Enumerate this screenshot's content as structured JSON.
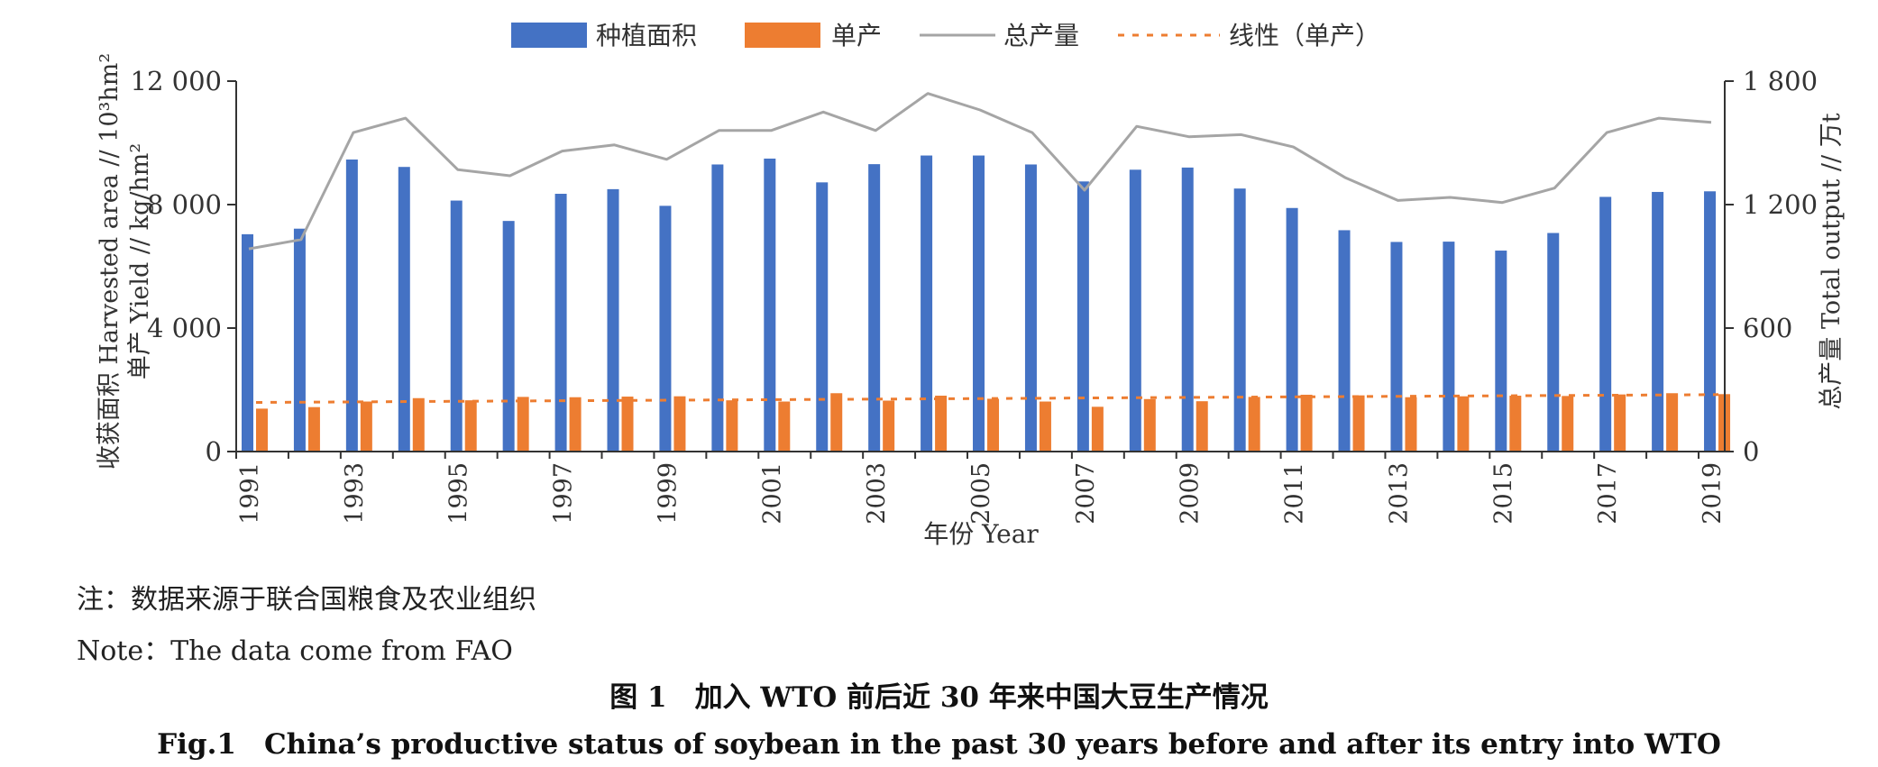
{
  "chart_data": {
    "type": "bar",
    "x": [
      "1991",
      "1992",
      "1993",
      "1994",
      "1995",
      "1996",
      "1997",
      "1998",
      "1999",
      "2000",
      "2001",
      "2002",
      "2003",
      "2004",
      "2005",
      "2006",
      "2007",
      "2008",
      "2009",
      "2010",
      "2011",
      "2012",
      "2013",
      "2014",
      "2015",
      "2016",
      "2017",
      "2018",
      "2019"
    ],
    "x_tick_labels": [
      "1991",
      "1993",
      "1995",
      "1997",
      "1999",
      "2001",
      "2003",
      "2005",
      "2007",
      "2009",
      "2011",
      "2013",
      "2015",
      "2017",
      "2019"
    ],
    "series": [
      {
        "name": "种植面积",
        "type": "bar",
        "axis": "left",
        "color": "#4472C4",
        "values": [
          7040,
          7220,
          9460,
          9220,
          8130,
          7470,
          8350,
          8500,
          7960,
          9300,
          9490,
          8720,
          9310,
          9590,
          9590,
          9300,
          8750,
          9130,
          9200,
          8520,
          7890,
          7170,
          6790,
          6800,
          6510,
          7080,
          8250,
          8410,
          8430
        ]
      },
      {
        "name": "单产",
        "type": "bar",
        "axis": "left",
        "color": "#ED7D31",
        "values": [
          1390,
          1440,
          1620,
          1730,
          1660,
          1770,
          1760,
          1780,
          1790,
          1660,
          1620,
          1890,
          1650,
          1810,
          1710,
          1620,
          1450,
          1700,
          1630,
          1770,
          1840,
          1820,
          1760,
          1790,
          1810,
          1800,
          1850,
          1890,
          1860
        ]
      },
      {
        "name": "总产量",
        "type": "line",
        "axis": "right",
        "color": "#A5A5A5",
        "values": [
          985,
          1030,
          1550,
          1620,
          1370,
          1340,
          1460,
          1490,
          1420,
          1560,
          1560,
          1650,
          1560,
          1740,
          1660,
          1550,
          1270,
          1580,
          1530,
          1540,
          1480,
          1330,
          1220,
          1235,
          1210,
          1280,
          1550,
          1620,
          1600
        ]
      },
      {
        "name": "线性（单产）",
        "type": "trendline",
        "axis": "left",
        "color": "#ED7D31",
        "values": [
          1592,
          1601,
          1610,
          1619,
          1628,
          1637,
          1646,
          1655,
          1664,
          1673,
          1682,
          1691,
          1700,
          1709,
          1718,
          1727,
          1736,
          1745,
          1754,
          1763,
          1772,
          1781,
          1790,
          1799,
          1808,
          1817,
          1826,
          1835,
          1844
        ]
      }
    ],
    "y_left": {
      "ylim": [
        0,
        12000
      ],
      "ticks": [
        "0",
        "4 000",
        "8 000",
        "12 000"
      ],
      "label_line1": "收获面积 Harvested area // 10³hm²",
      "label_line2": "单产 Yield // kg/hm²"
    },
    "y_right": {
      "ylim": [
        0,
        1800
      ],
      "ticks": [
        "0",
        "600",
        "1 200",
        "1 800"
      ],
      "label": "总产量 Total output // 万t"
    },
    "xlabel": "年份 Year",
    "legend": {
      "placement": "top-center",
      "items": [
        "种植面积",
        "单产",
        "总产量",
        "线性（单产）"
      ]
    },
    "grid": false
  },
  "notes": {
    "cn": "注：数据来源于联合国粮食及农业组织",
    "en": "Note：The data come from FAO"
  },
  "caption": {
    "cn": "图 1　加入 WTO 前后近 30 年来中国大豆生产情况",
    "en": "Fig.1　China’s productive status of soybean in the past 30 years before and after its entry into WTO"
  }
}
